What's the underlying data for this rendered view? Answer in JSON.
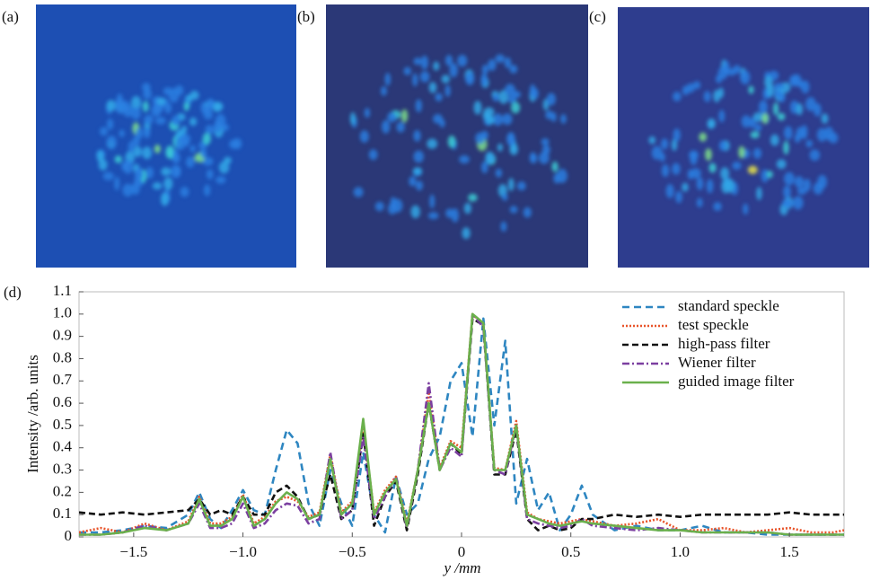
{
  "panels": [
    "(a)",
    "(b)",
    "(c)",
    "(d)"
  ],
  "chart_data": {
    "type": "line",
    "xlabel": "y /mm",
    "ylabel": "Intensity /arb. units",
    "xlim": [
      -1.75,
      1.75
    ],
    "ylim": [
      0,
      1.1
    ],
    "xticks": [
      {
        "value": -1.5,
        "label": "−1.5"
      },
      {
        "value": -1,
        "label": "−1.0"
      },
      {
        "value": -0.5,
        "label": "−0.5"
      },
      0,
      0.5,
      {
        "value": 1,
        "label": "1.0"
      },
      1.5
    ],
    "yticks": [
      0,
      0.1,
      0.2,
      0.3,
      0.4,
      0.5,
      0.6,
      0.7,
      0.8,
      0.9,
      {
        "value": 1,
        "label": "1.0"
      },
      1.1
    ],
    "legend": "upper right",
    "x": [
      -1.75,
      -1.65,
      -1.55,
      -1.45,
      -1.35,
      -1.25,
      -1.2,
      -1.15,
      -1.1,
      -1.05,
      -1,
      -0.95,
      -0.9,
      -0.85,
      -0.8,
      -0.75,
      -0.7,
      -0.65,
      -0.6,
      -0.55,
      -0.5,
      -0.45,
      -0.4,
      -0.35,
      -0.3,
      -0.25,
      -0.2,
      -0.15,
      -0.1,
      -0.05,
      0,
      0.05,
      0.1,
      0.15,
      0.2,
      0.25,
      0.3,
      0.35,
      0.4,
      0.45,
      0.5,
      0.55,
      0.6,
      0.7,
      0.8,
      0.9,
      1,
      1.1,
      1.2,
      1.3,
      1.4,
      1.5,
      1.6,
      1.7,
      1.75
    ],
    "series": [
      {
        "name": "standard speckle",
        "color": "#2e86c1",
        "dash": "8,5",
        "values": [
          0.02,
          0.02,
          0.03,
          0.05,
          0.04,
          0.1,
          0.2,
          0.08,
          0.04,
          0.12,
          0.21,
          0.12,
          0.1,
          0.3,
          0.48,
          0.42,
          0.15,
          0.05,
          0.3,
          0.15,
          0.05,
          0.38,
          0.1,
          0.02,
          0.27,
          0.1,
          0.15,
          0.35,
          0.45,
          0.7,
          0.78,
          0.45,
          0.98,
          0.5,
          0.88,
          0.15,
          0.35,
          0.12,
          0.2,
          0.03,
          0.1,
          0.23,
          0.1,
          0.03,
          0.05,
          0.03,
          0.03,
          0.05,
          0.02,
          0.02,
          0.01,
          0.01,
          0.01,
          0.01,
          0.01
        ]
      },
      {
        "name": "test speckle",
        "color": "#e8542a",
        "dash": "2,2",
        "values": [
          0.02,
          0.04,
          0.02,
          0.06,
          0.03,
          0.07,
          0.18,
          0.06,
          0.06,
          0.09,
          0.19,
          0.06,
          0.09,
          0.16,
          0.18,
          0.16,
          0.09,
          0.11,
          0.37,
          0.11,
          0.16,
          0.5,
          0.11,
          0.21,
          0.27,
          0.06,
          0.3,
          0.65,
          0.31,
          0.43,
          0.4,
          1.0,
          0.95,
          0.31,
          0.3,
          0.52,
          0.11,
          0.08,
          0.07,
          0.06,
          0.07,
          0.08,
          0.07,
          0.05,
          0.06,
          0.08,
          0.03,
          0.03,
          0.04,
          0.02,
          0.03,
          0.04,
          0.02,
          0.02,
          0.03
        ]
      },
      {
        "name": "high-pass filter",
        "color": "#111111",
        "dash": "7,4",
        "values": [
          0.11,
          0.1,
          0.11,
          0.1,
          0.11,
          0.12,
          0.17,
          0.1,
          0.12,
          0.1,
          0.18,
          0.1,
          0.1,
          0.2,
          0.23,
          0.18,
          0.08,
          0.1,
          0.28,
          0.08,
          0.12,
          0.47,
          0.05,
          0.18,
          0.25,
          0.03,
          0.28,
          0.6,
          0.3,
          0.42,
          0.37,
          0.98,
          0.95,
          0.28,
          0.28,
          0.48,
          0.08,
          0.03,
          0.05,
          0.03,
          0.04,
          0.08,
          0.08,
          0.1,
          0.09,
          0.1,
          0.09,
          0.1,
          0.1,
          0.1,
          0.1,
          0.11,
          0.1,
          0.1,
          0.1
        ]
      },
      {
        "name": "Wiener filter",
        "color": "#7b3fa0",
        "dash": "8,3,2,3",
        "values": [
          0.01,
          0.01,
          0.02,
          0.05,
          0.03,
          0.06,
          0.15,
          0.04,
          0.04,
          0.06,
          0.15,
          0.04,
          0.06,
          0.12,
          0.15,
          0.14,
          0.06,
          0.08,
          0.38,
          0.08,
          0.12,
          0.45,
          0.08,
          0.18,
          0.27,
          0.04,
          0.3,
          0.69,
          0.3,
          0.4,
          0.36,
          1.0,
          0.94,
          0.3,
          0.28,
          0.5,
          0.08,
          0.06,
          0.05,
          0.04,
          0.05,
          0.08,
          0.05,
          0.04,
          0.03,
          0.04,
          0.03,
          0.02,
          0.02,
          0.02,
          0.02,
          0.01,
          0.01,
          0.01,
          0.01
        ]
      },
      {
        "name": "guided image filter",
        "color": "#6ab04c",
        "dash": "none",
        "values": [
          0.01,
          0.01,
          0.02,
          0.04,
          0.03,
          0.06,
          0.17,
          0.05,
          0.05,
          0.08,
          0.18,
          0.05,
          0.08,
          0.15,
          0.2,
          0.17,
          0.08,
          0.1,
          0.35,
          0.1,
          0.15,
          0.53,
          0.1,
          0.2,
          0.26,
          0.05,
          0.3,
          0.6,
          0.3,
          0.42,
          0.38,
          1.0,
          0.96,
          0.3,
          0.3,
          0.5,
          0.1,
          0.08,
          0.06,
          0.05,
          0.06,
          0.07,
          0.06,
          0.05,
          0.04,
          0.03,
          0.03,
          0.02,
          0.02,
          0.02,
          0.02,
          0.01,
          0.01,
          0.01,
          0.01
        ]
      }
    ]
  }
}
